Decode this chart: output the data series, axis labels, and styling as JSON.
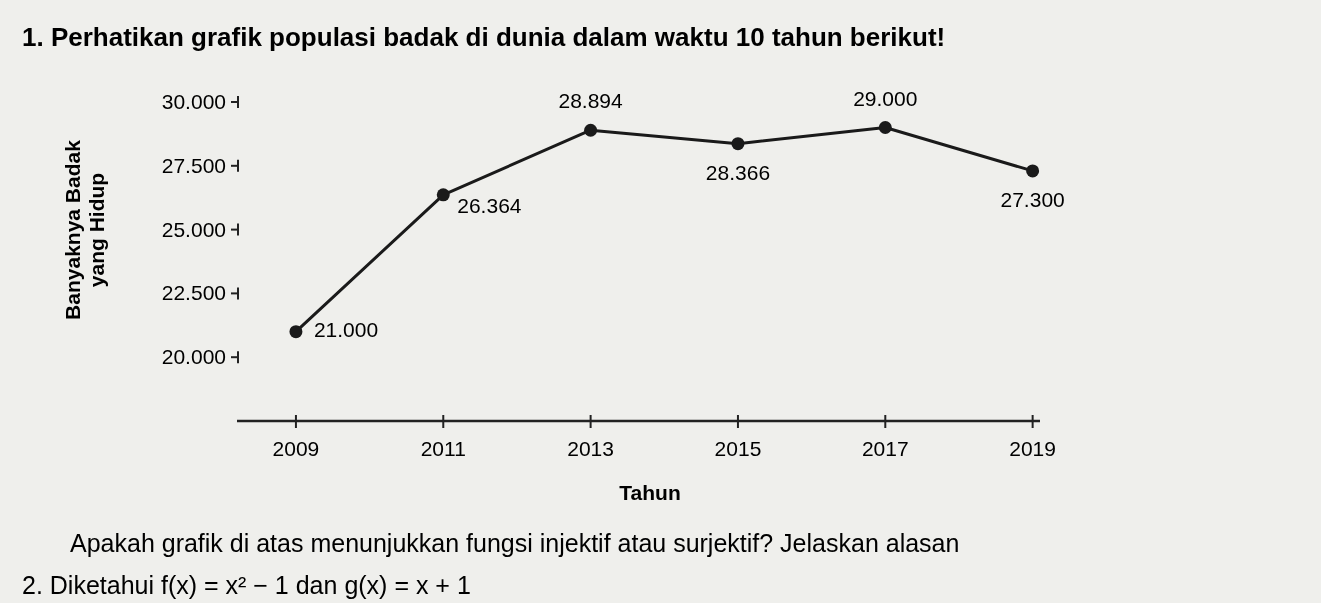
{
  "chart_data": {
    "type": "line",
    "title": "1. Perhatikan grafik populasi badak di dunia dalam waktu 10 tahun berikut!",
    "xlabel": "Tahun",
    "ylabel": "Banyaknya Badak yang Hidup",
    "x": [
      2009,
      2011,
      2013,
      2015,
      2017,
      2019
    ],
    "series": [
      {
        "color": "#1a1a1a",
        "values": [
          21000,
          26364,
          28894,
          28366,
          29000,
          27300
        ],
        "value_labels": [
          "21.000",
          "26.364",
          "28.894",
          "28.366",
          "29.000",
          "27.300"
        ]
      }
    ],
    "xlim": [
      2008.2,
      2019.1
    ],
    "xticks": [
      2009,
      2011,
      2013,
      2015,
      2017,
      2019
    ],
    "ylim": [
      17500,
      30000
    ],
    "yticks": [
      {
        "value": 20000,
        "label": "20.000"
      },
      {
        "value": 22500,
        "label": "22.500"
      },
      {
        "value": 25000,
        "label": "25.000"
      },
      {
        "value": 27500,
        "label": "27.500"
      },
      {
        "value": 30000,
        "label": "30.000"
      }
    ],
    "marker": "circle",
    "grid": false,
    "annotations": [
      "Apakah grafik di atas menunjukkan fungsi injektif atau surjektif? Jelaskan alasan",
      "2. Diketahui f(x) = x² − 1 dan g(x) = x + 1"
    ]
  }
}
